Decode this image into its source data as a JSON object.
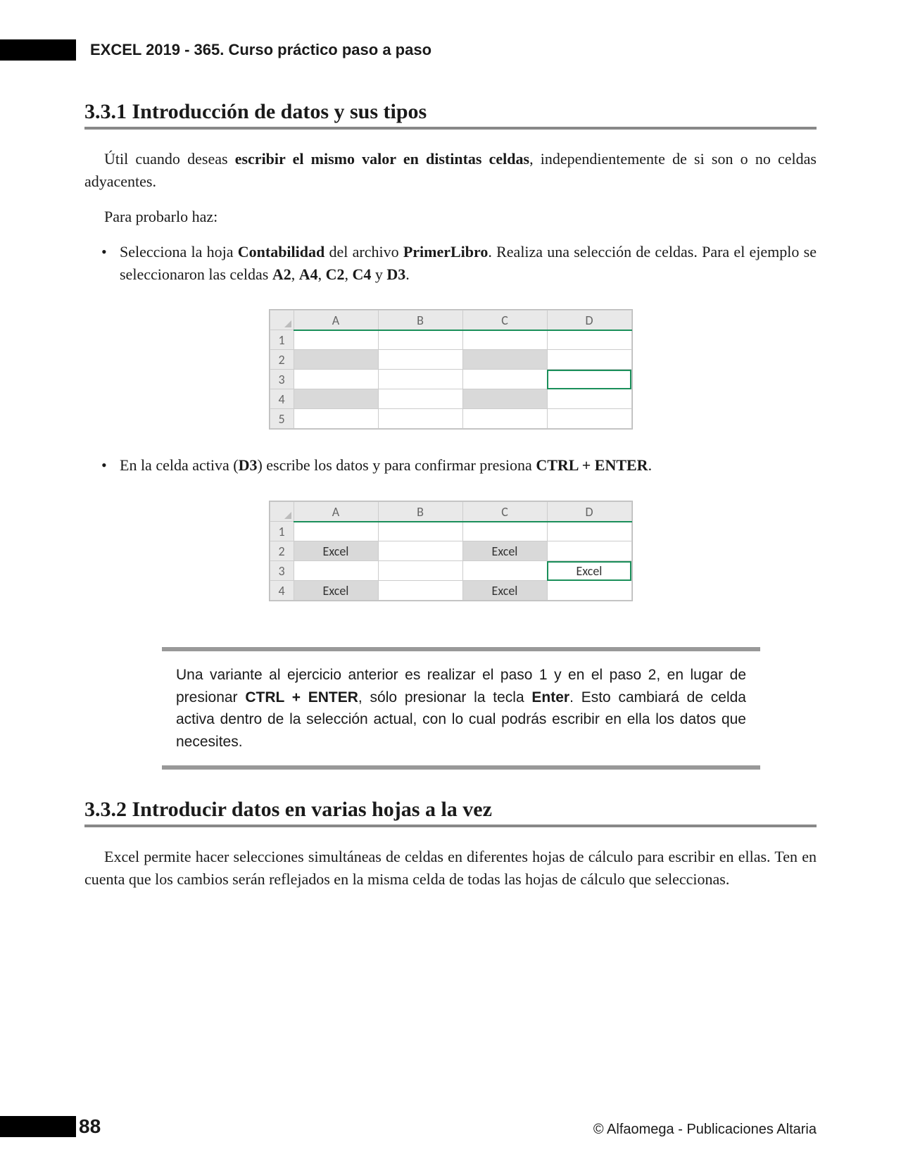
{
  "header": {
    "title": "EXCEL 2019 - 365. Curso práctico paso a paso"
  },
  "section1": {
    "heading": "3.3.1 Introducción de datos y sus tipos",
    "p1_pre": "Útil cuando deseas ",
    "p1_bold": "escribir el mismo valor en distintas celdas",
    "p1_post": ", independientemente de si son o no celdas adyacentes.",
    "p2": "Para probarlo haz:",
    "li1_a": "Selecciona la hoja ",
    "li1_b1": "Contabilidad",
    "li1_c": " del archivo ",
    "li1_b2": "PrimerLibro",
    "li1_d": ". Realiza una selección de celdas. Para el ejemplo se seleccionaron las celdas ",
    "li1_b3": "A2",
    "li1_e": ", ",
    "li1_b4": "A4",
    "li1_f": ", ",
    "li1_b5": "C2",
    "li1_g": ", ",
    "li1_b6": "C4",
    "li1_h": " y ",
    "li1_b7": "D3",
    "li1_i": ".",
    "li2_a": "En la celda activa (",
    "li2_b1": "D3",
    "li2_b": ") escribe los datos y para confirmar presiona ",
    "li2_b2": "CTRL + ENTER",
    "li2_c": "."
  },
  "figure1": {
    "columns": [
      "A",
      "B",
      "C",
      "D"
    ],
    "rows": [
      "1",
      "2",
      "3",
      "4",
      "5"
    ],
    "selected": [
      "A2",
      "A4",
      "C2",
      "C4"
    ],
    "active": "D3",
    "colors": {
      "header_bg": "#e9e9e9",
      "sel_bg": "#d9d9d9",
      "border": "#cccccc",
      "accent": "#1a8f5a"
    }
  },
  "figure2": {
    "columns": [
      "A",
      "B",
      "C",
      "D"
    ],
    "rows": [
      "1",
      "2",
      "3",
      "4"
    ],
    "cells": {
      "A2": "Excel",
      "C2": "Excel",
      "D3": "Excel",
      "A4": "Excel",
      "C4": "Excel"
    },
    "selected": [
      "A2",
      "A4",
      "C2",
      "C4"
    ],
    "active": "D3"
  },
  "tip": {
    "t1": "Una variante al ejercicio anterior es realizar el paso 1 y en el paso 2, en lugar de presionar ",
    "b1": "CTRL + ENTER",
    "t2": ", sólo presionar la tecla ",
    "b2": "Enter",
    "t3": ". Esto cambiará de celda activa dentro de la selección actual, con lo cual podrás escribir en ella los datos que necesites."
  },
  "section2": {
    "heading": "3.3.2 Introducir datos en varias hojas a la vez",
    "p1": "Excel permite hacer selecciones simultáneas de celdas en diferentes hojas de cálculo para escribir en ellas. Ten en cuenta que los cambios serán reflejados en la misma celda de todas las hojas de cálculo que seleccionas."
  },
  "footer": {
    "page": "88",
    "copyright": "© Alfaomega - Publicaciones Altaria"
  }
}
